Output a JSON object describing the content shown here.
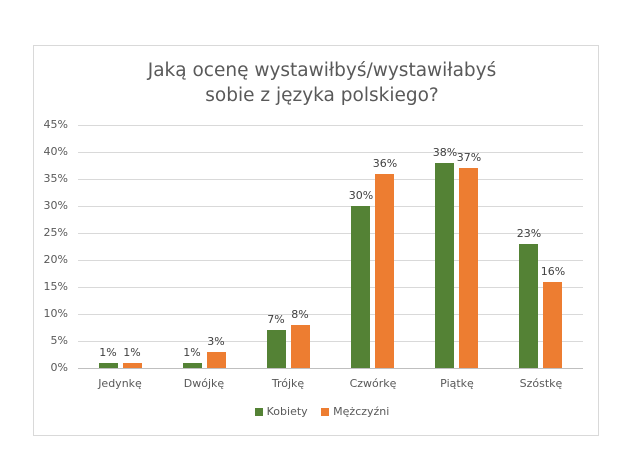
{
  "chart_data": {
    "type": "bar",
    "title": "Jaką ocenę wystawiłbyś/wystawiłabyś sobie z języka polskiego?",
    "title_lines": [
      "Jaką ocenę wystawiłbyś/wystawiłabyś",
      "sobie z języka polskiego?"
    ],
    "categories": [
      "Jedynkę",
      "Dwójkę",
      "Trójkę",
      "Czwórkę",
      "Piątkę",
      "Szóstkę"
    ],
    "series": [
      {
        "name": "Kobiety",
        "color": "#548235",
        "values": [
          1,
          1,
          7,
          30,
          38,
          23
        ],
        "labels": [
          "1%",
          "1%",
          "7%",
          "30%",
          "38%",
          "23%"
        ]
      },
      {
        "name": "Mężczyźni",
        "color": "#ed7d31",
        "values": [
          1,
          3,
          8,
          36,
          37,
          16
        ],
        "labels": [
          "1%",
          "3%",
          "8%",
          "36%",
          "37%",
          "16%"
        ]
      }
    ],
    "xlabel": "",
    "ylabel": "",
    "ylim": [
      0,
      45
    ],
    "yticks": [
      "0%",
      "5%",
      "10%",
      "15%",
      "20%",
      "25%",
      "30%",
      "35%",
      "40%",
      "45%"
    ],
    "grid": true,
    "legend_position": "bottom"
  }
}
